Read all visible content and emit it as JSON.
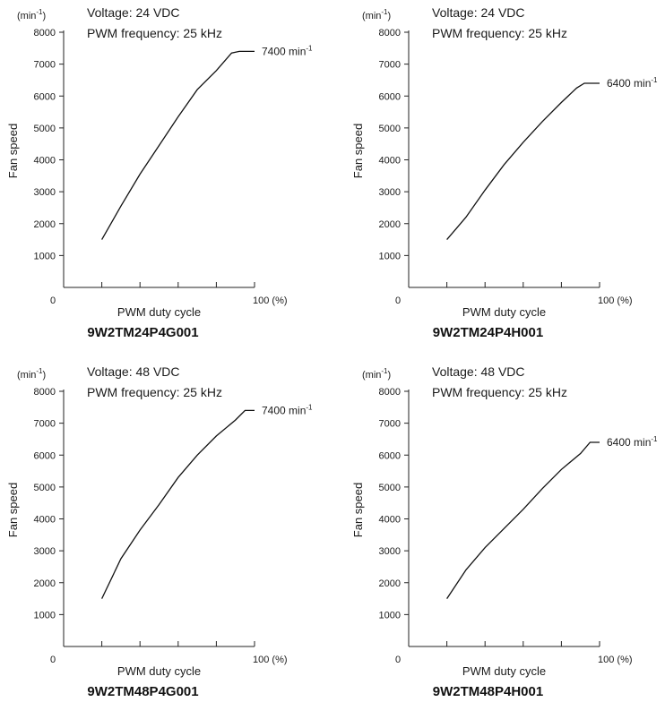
{
  "chart_data": [
    {
      "type": "line",
      "title": "9W2TM24P4G001",
      "info": [
        "Voltage: 24 VDC",
        "PWM frequency: 25 kHz"
      ],
      "ylabel": "Fan speed",
      "y_unit": "(min-1)",
      "xlabel": "PWM duty cycle",
      "x_end_label": "100 (%)",
      "x_origin_label": "0",
      "x_ticks": [
        20,
        40,
        60,
        80,
        100
      ],
      "y_ticks": [
        1000,
        2000,
        3000,
        4000,
        5000,
        6000,
        7000,
        8000
      ],
      "xlim": [
        0,
        100
      ],
      "ylim": [
        0,
        8000
      ],
      "end_value_label": "7400 min-1",
      "x": [
        20,
        30,
        40,
        50,
        60,
        70,
        80,
        88,
        92,
        100
      ],
      "y": [
        1500,
        2550,
        3550,
        4450,
        5350,
        6200,
        6800,
        7350,
        7400,
        7400
      ]
    },
    {
      "type": "line",
      "title": "9W2TM24P4H001",
      "info": [
        "Voltage: 24 VDC",
        "PWM frequency: 25 kHz"
      ],
      "ylabel": "Fan speed",
      "y_unit": "(min-1)",
      "xlabel": "PWM duty cycle",
      "x_end_label": "100 (%)",
      "x_origin_label": "0",
      "x_ticks": [
        20,
        40,
        60,
        80,
        100
      ],
      "y_ticks": [
        1000,
        2000,
        3000,
        4000,
        5000,
        6000,
        7000,
        8000
      ],
      "xlim": [
        0,
        100
      ],
      "ylim": [
        0,
        8000
      ],
      "end_value_label": "6400 min-1",
      "x": [
        20,
        30,
        40,
        50,
        60,
        70,
        80,
        88,
        92,
        100
      ],
      "y": [
        1500,
        2200,
        3050,
        3850,
        4550,
        5200,
        5800,
        6250,
        6400,
        6400
      ]
    },
    {
      "type": "line",
      "title": "9W2TM48P4G001",
      "info": [
        "Voltage: 48 VDC",
        "PWM frequency: 25 kHz"
      ],
      "ylabel": "Fan speed",
      "y_unit": "(min-1)",
      "xlabel": "PWM duty cycle",
      "x_end_label": "100 (%)",
      "x_origin_label": "0",
      "x_ticks": [
        20,
        40,
        60,
        80,
        100
      ],
      "y_ticks": [
        1000,
        2000,
        3000,
        4000,
        5000,
        6000,
        7000,
        8000
      ],
      "xlim": [
        0,
        100
      ],
      "ylim": [
        0,
        8000
      ],
      "end_value_label": "7400 min-1",
      "x": [
        20,
        30,
        40,
        50,
        60,
        70,
        80,
        90,
        95,
        100
      ],
      "y": [
        1500,
        2750,
        3650,
        4450,
        5300,
        6000,
        6600,
        7100,
        7400,
        7400
      ]
    },
    {
      "type": "line",
      "title": "9W2TM48P4H001",
      "info": [
        "Voltage: 48 VDC",
        "PWM frequency: 25 kHz"
      ],
      "ylabel": "Fan speed",
      "y_unit": "(min-1)",
      "xlabel": "PWM duty cycle",
      "x_end_label": "100 (%)",
      "x_origin_label": "0",
      "x_ticks": [
        20,
        40,
        60,
        80,
        100
      ],
      "y_ticks": [
        1000,
        2000,
        3000,
        4000,
        5000,
        6000,
        7000,
        8000
      ],
      "xlim": [
        0,
        100
      ],
      "ylim": [
        0,
        8000
      ],
      "end_value_label": "6400 min-1",
      "x": [
        20,
        30,
        40,
        50,
        60,
        70,
        80,
        90,
        95,
        100
      ],
      "y": [
        1500,
        2400,
        3100,
        3700,
        4300,
        4950,
        5550,
        6050,
        6400,
        6400
      ]
    }
  ]
}
